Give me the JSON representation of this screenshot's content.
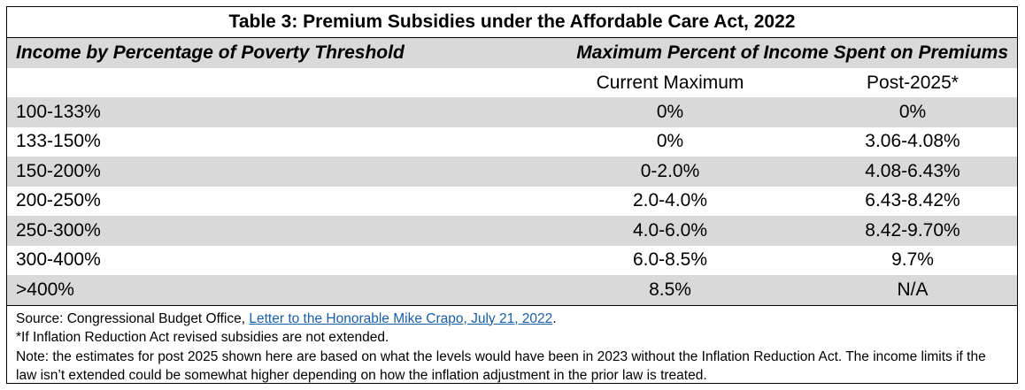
{
  "table": {
    "title": "Table 3: Premium Subsidies under the Affordable Care Act, 2022",
    "header_income": "Income by Percentage of Poverty Threshold",
    "header_max": "Maximum Percent of Income Spent on Premiums",
    "sub_current": "Current Maximum",
    "sub_post": "Post-2025*",
    "rows": [
      {
        "income": "100-133%",
        "current": "0%",
        "post": "0%"
      },
      {
        "income": "133-150%",
        "current": "0%",
        "post": "3.06-4.08%"
      },
      {
        "income": "150-200%",
        "current": "0-2.0%",
        "post": "4.08-6.43%"
      },
      {
        "income": "200-250%",
        "current": "2.0-4.0%",
        "post": "6.43-8.42%"
      },
      {
        "income": "250-300%",
        "current": "4.0-6.0%",
        "post": "8.42-9.70%"
      },
      {
        "income": "300-400%",
        "current": "6.0-8.5%",
        "post": "9.7%"
      },
      {
        "income": ">400%",
        "current": "8.5%",
        "post": "N/A"
      }
    ]
  },
  "notes": {
    "source_prefix": "Source: Congressional Budget Office, ",
    "source_link": "Letter to the Honorable Mike Crapo, July 21, 2022",
    "source_suffix": ".",
    "footnote": "*If Inflation Reduction Act revised subsidies are not extended.",
    "note": "Note: the estimates for post 2025 shown here are based on what the levels would have been in 2023 without the Inflation Reduction Act. The income limits if the law isn’t extended could be somewhat higher depending on how the inflation adjustment in the prior law is treated."
  },
  "colors": {
    "shade": "#d9d9d9",
    "link": "#1a5fa6"
  }
}
